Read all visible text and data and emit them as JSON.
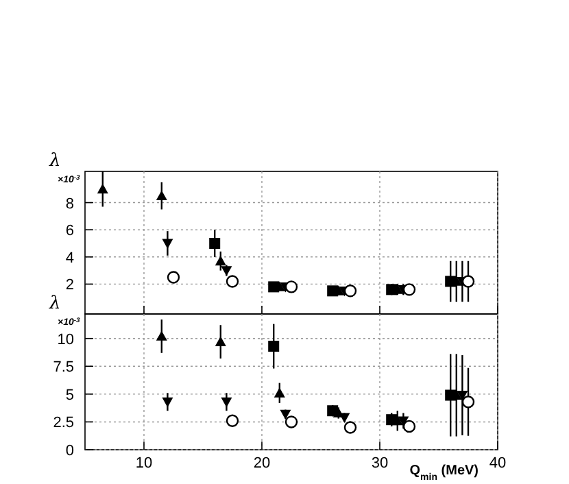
{
  "chart_data": [
    {
      "type": "scatter",
      "ylabel": "λ",
      "annotations": [
        "×10$^{-3}$"
      ],
      "xlim": [
        5,
        40
      ],
      "xticks": [
        10,
        20,
        30,
        40
      ],
      "ylim": [
        -0.2,
        10.3
      ],
      "yticks": [
        2,
        4,
        6,
        8
      ],
      "grid": true,
      "tick_labels": "y",
      "series": [
        {
          "color": "#000000",
          "marker": "triangle",
          "x": [
            6.5,
            11.5,
            16.5,
            21.5,
            26.5,
            31.5,
            36.5
          ],
          "values": [
            9.0,
            8.5,
            3.7,
            1.8,
            1.5,
            1.6,
            2.2
          ],
          "errors": [
            1.3,
            1.0,
            0.7,
            0.1,
            0.1,
            0.4,
            1.5
          ]
        },
        {
          "color": "#000000",
          "marker": "triangle-down",
          "x": [
            12,
            17,
            22,
            27,
            32,
            37
          ],
          "values": [
            5.0,
            3.0,
            1.8,
            1.5,
            1.6,
            2.2
          ],
          "errors": [
            0.9,
            0.4,
            0.1,
            0.1,
            0.4,
            1.5
          ]
        },
        {
          "color": "#000000",
          "marker": "square",
          "x": [
            16,
            21,
            26,
            31,
            36
          ],
          "values": [
            5.0,
            1.8,
            1.5,
            1.6,
            2.2
          ],
          "errors": [
            1.0,
            0.1,
            0.1,
            0.4,
            1.5
          ]
        },
        {
          "color": "#000000",
          "marker": "circle",
          "x": [
            12.5,
            17.5,
            22.5,
            27.5,
            32.5,
            37.5
          ],
          "values": [
            2.5,
            2.2,
            1.8,
            1.5,
            1.6,
            2.2
          ],
          "errors": [
            0.2,
            0.1,
            0.1,
            0.1,
            0.3,
            1.5
          ]
        }
      ]
    },
    {
      "type": "scatter",
      "ylabel": "λ",
      "xlabel": "Q$_{min}$  (MeV)",
      "annotations": [
        "×10$^{-3}$"
      ],
      "xlim": [
        5,
        40
      ],
      "xticks": [
        10,
        20,
        30,
        40
      ],
      "ylim": [
        0,
        12.2
      ],
      "yticks": [
        0,
        2.5,
        5,
        7.5,
        10
      ],
      "grid": true,
      "series": [
        {
          "color": "#000000",
          "marker": "triangle",
          "x": [
            11.5,
            16.5,
            21.5,
            26.5,
            31.5,
            36.5
          ],
          "values": [
            10.2,
            9.7,
            5.1,
            3.3,
            2.6,
            4.9
          ],
          "errors": [
            1.5,
            1.5,
            0.9,
            0.5,
            0.9,
            3.7
          ]
        },
        {
          "color": "#000000",
          "marker": "triangle-down",
          "x": [
            12,
            17,
            22,
            27,
            32,
            37
          ],
          "values": [
            4.3,
            4.3,
            3.2,
            2.9,
            2.6,
            4.9
          ],
          "errors": [
            0.8,
            0.8,
            0.4,
            0.4,
            0.7,
            3.6
          ]
        },
        {
          "color": "#000000",
          "marker": "square",
          "x": [
            21,
            26,
            31,
            36
          ],
          "values": [
            9.3,
            3.5,
            2.7,
            4.9
          ],
          "errors": [
            2.0,
            0.5,
            0.6,
            3.7
          ]
        },
        {
          "color": "#000000",
          "marker": "circle",
          "x": [
            17.5,
            22.5,
            27.5,
            32.5,
            37.5
          ],
          "values": [
            2.6,
            2.5,
            2.0,
            2.1,
            4.3
          ],
          "errors": [
            0.3,
            0.3,
            0.2,
            0.3,
            3.05
          ]
        }
      ]
    }
  ]
}
